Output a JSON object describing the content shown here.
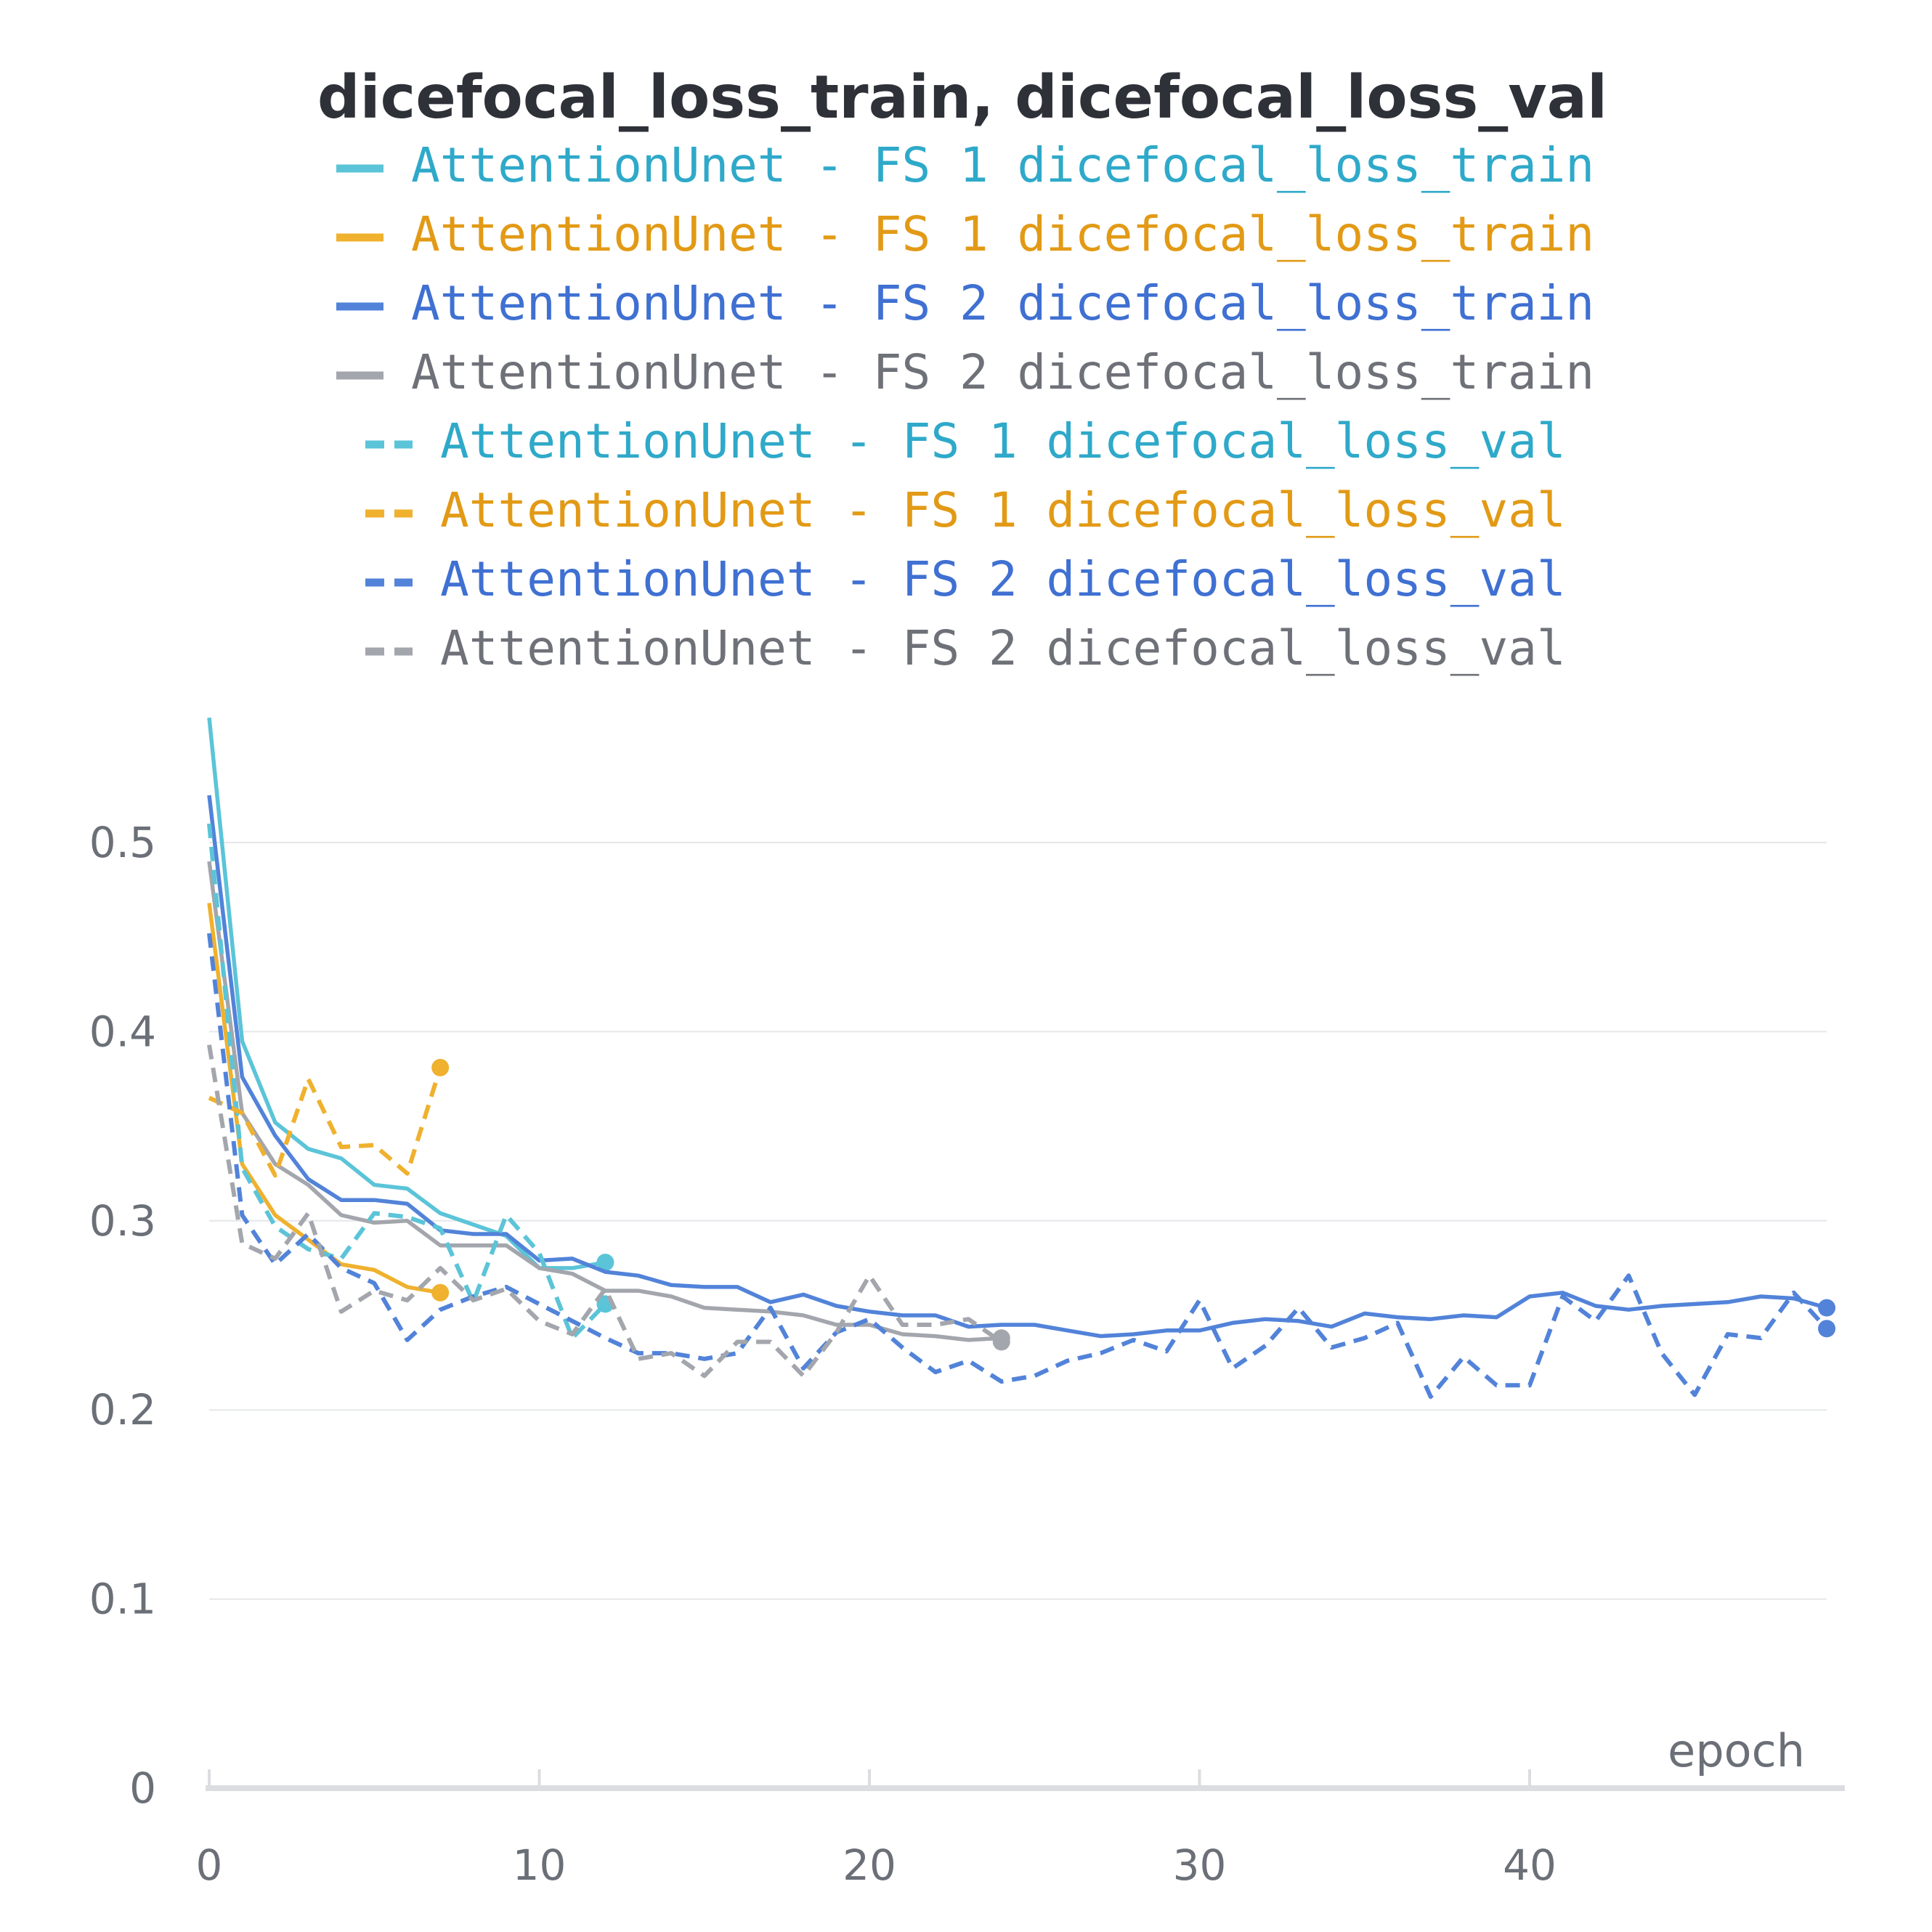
{
  "chart_data": {
    "type": "line",
    "title": "dicefocal_loss_train, dicefocal_loss_val",
    "xlabel": "epoch",
    "ylabel": "",
    "xlim": [
      0,
      49
    ],
    "ylim": [
      0,
      0.56
    ],
    "x_ticks": [
      0,
      10,
      20,
      30,
      40
    ],
    "x_tick_labels": [
      "0",
      "10",
      "20",
      "30",
      "40"
    ],
    "y_ticks": [
      0,
      0.1,
      0.2,
      0.3,
      0.4,
      0.5
    ],
    "y_tick_labels": [
      "0",
      "0.1",
      "0.2",
      "0.3",
      "0.4",
      "0.5"
    ],
    "grid": true,
    "legend_position": "top",
    "series": [
      {
        "name": "AttentionUnet - FS 1 dicefocal_loss_train",
        "color": "#5bc4d8",
        "label_color": "#2fa9c9",
        "dash": false,
        "end_marker": true,
        "x": [
          0,
          1,
          2,
          3,
          4,
          5,
          6,
          7,
          8,
          9,
          10,
          11,
          12
        ],
        "values": [
          0.566,
          0.395,
          0.352,
          0.338,
          0.333,
          0.319,
          0.317,
          0.304,
          0.298,
          0.292,
          0.275,
          0.275,
          0.278
        ]
      },
      {
        "name": "AttentionUnet - FS 1 dicefocal_loss_train",
        "color": "#efb12e",
        "label_color": "#e29a16",
        "dash": false,
        "end_marker": true,
        "x": [
          0,
          1,
          2,
          3,
          4,
          5,
          6,
          7
        ],
        "values": [
          0.468,
          0.33,
          0.303,
          0.29,
          0.277,
          0.274,
          0.265,
          0.262
        ]
      },
      {
        "name": "AttentionUnet - FS 2 dicefocal_loss_train",
        "color": "#5283d9",
        "label_color": "#3f70d2",
        "dash": false,
        "end_marker": true,
        "x": [
          0,
          1,
          2,
          3,
          4,
          5,
          6,
          7,
          8,
          9,
          10,
          11,
          12,
          13,
          14,
          15,
          16,
          17,
          18,
          19,
          20,
          21,
          22,
          23,
          24,
          25,
          26,
          27,
          28,
          29,
          30,
          31,
          32,
          33,
          34,
          35,
          36,
          37,
          38,
          39,
          40,
          41,
          42,
          43,
          44,
          45,
          46,
          47,
          48,
          49
        ],
        "values": [
          0.525,
          0.376,
          0.345,
          0.322,
          0.311,
          0.311,
          0.309,
          0.295,
          0.293,
          0.293,
          0.279,
          0.28,
          0.273,
          0.271,
          0.266,
          0.265,
          0.265,
          0.257,
          0.261,
          0.255,
          0.252,
          0.25,
          0.25,
          0.244,
          0.245,
          0.245,
          0.242,
          0.239,
          0.24,
          0.242,
          0.242,
          0.246,
          0.248,
          0.247,
          0.244,
          0.251,
          0.249,
          0.248,
          0.25,
          0.249,
          0.26,
          0.262,
          0.255,
          0.253,
          0.255,
          0.256,
          0.257,
          0.26,
          0.259,
          0.254
        ]
      },
      {
        "name": "AttentionUnet - FS 2 dicefocal_loss_train",
        "color": "#a3a6ac",
        "label_color": "#6e7178",
        "dash": false,
        "end_marker": true,
        "x": [
          0,
          1,
          2,
          3,
          4,
          5,
          6,
          7,
          8,
          9,
          10,
          11,
          12,
          13,
          14,
          15,
          16,
          17,
          18,
          19,
          20,
          21,
          22,
          23,
          24
        ],
        "values": [
          0.49,
          0.357,
          0.33,
          0.319,
          0.303,
          0.299,
          0.3,
          0.287,
          0.287,
          0.287,
          0.275,
          0.272,
          0.263,
          0.263,
          0.26,
          0.254,
          0.253,
          0.252,
          0.25,
          0.245,
          0.245,
          0.24,
          0.239,
          0.237,
          0.238
        ]
      },
      {
        "name": "AttentionUnet - FS 1 dicefocal_loss_val",
        "color": "#5bc4d8",
        "label_color": "#2fa9c9",
        "dash": true,
        "end_marker": true,
        "x": [
          0,
          1,
          2,
          3,
          4,
          5,
          6,
          7,
          8,
          9,
          10,
          11,
          12
        ],
        "values": [
          0.51,
          0.328,
          0.297,
          0.285,
          0.28,
          0.304,
          0.302,
          0.296,
          0.257,
          0.303,
          0.283,
          0.238,
          0.256
        ]
      },
      {
        "name": "AttentionUnet - FS 1 dicefocal_loss_val",
        "color": "#efb12e",
        "label_color": "#e29a16",
        "dash": true,
        "end_marker": true,
        "x": [
          0,
          1,
          2,
          3,
          4,
          5,
          6,
          7
        ],
        "values": [
          0.365,
          0.357,
          0.324,
          0.375,
          0.339,
          0.34,
          0.325,
          0.381
        ]
      },
      {
        "name": "AttentionUnet - FS 2 dicefocal_loss_val",
        "color": "#5283d9",
        "label_color": "#3f70d2",
        "dash": true,
        "end_marker": true,
        "x": [
          0,
          1,
          2,
          3,
          4,
          5,
          6,
          7,
          8,
          9,
          10,
          11,
          12,
          13,
          14,
          15,
          16,
          17,
          18,
          19,
          20,
          21,
          22,
          23,
          24,
          25,
          26,
          27,
          28,
          29,
          30,
          31,
          32,
          33,
          34,
          35,
          36,
          37,
          38,
          39,
          40,
          41,
          42,
          43,
          44,
          45,
          46,
          47,
          48,
          49
        ],
        "values": [
          0.452,
          0.303,
          0.277,
          0.293,
          0.275,
          0.267,
          0.237,
          0.253,
          0.26,
          0.265,
          0.256,
          0.247,
          0.238,
          0.23,
          0.23,
          0.227,
          0.23,
          0.254,
          0.222,
          0.241,
          0.248,
          0.233,
          0.22,
          0.226,
          0.215,
          0.218,
          0.226,
          0.23,
          0.237,
          0.231,
          0.258,
          0.222,
          0.234,
          0.254,
          0.233,
          0.238,
          0.246,
          0.207,
          0.228,
          0.213,
          0.213,
          0.26,
          0.247,
          0.271,
          0.23,
          0.208,
          0.24,
          0.238,
          0.262,
          0.243
        ]
      },
      {
        "name": "AttentionUnet - FS 2 dicefocal_loss_val",
        "color": "#a3a6ac",
        "label_color": "#6e7178",
        "dash": true,
        "end_marker": true,
        "x": [
          0,
          1,
          2,
          3,
          4,
          5,
          6,
          7,
          8,
          9,
          10,
          11,
          12,
          13,
          14,
          15,
          16,
          17,
          18,
          19,
          20,
          21,
          22,
          23,
          24
        ],
        "values": [
          0.393,
          0.288,
          0.28,
          0.304,
          0.252,
          0.263,
          0.258,
          0.275,
          0.258,
          0.264,
          0.247,
          0.24,
          0.264,
          0.227,
          0.23,
          0.218,
          0.236,
          0.236,
          0.218,
          0.241,
          0.271,
          0.245,
          0.245,
          0.248,
          0.236
        ]
      }
    ]
  }
}
